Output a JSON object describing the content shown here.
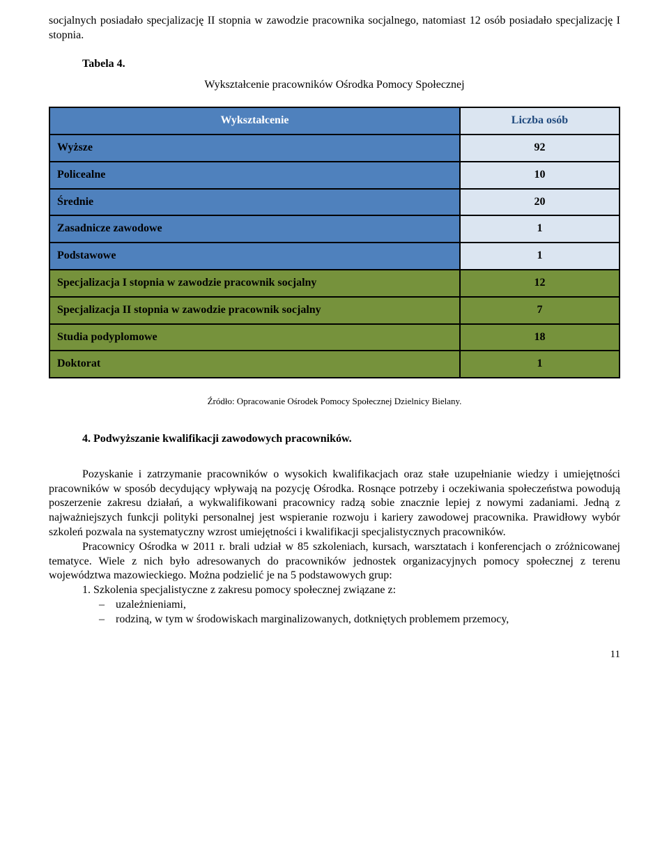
{
  "intro": "socjalnych posiadało specjalizację II stopnia w zawodzie pracownika socjalnego, natomiast 12 osób posiadało specjalizację I stopnia.",
  "tabela_label": "Tabela 4.",
  "table_title": "Wykształcenie pracowników Ośrodka Pomocy Społecznej",
  "table": {
    "header_left": "Wykształcenie",
    "header_right": "Liczba osób",
    "rows": [
      {
        "label": "Wyższe",
        "value": "92",
        "style": "blue"
      },
      {
        "label": "Policealne",
        "value": "10",
        "style": "blue"
      },
      {
        "label": "Średnie",
        "value": "20",
        "style": "blue"
      },
      {
        "label": "Zasadnicze zawodowe",
        "value": "1",
        "style": "blue"
      },
      {
        "label": "Podstawowe",
        "value": "1",
        "style": "blue"
      },
      {
        "label": "Specjalizacja I stopnia w zawodzie pracownik socjalny",
        "value": "12",
        "style": "green"
      },
      {
        "label": "Specjalizacja II stopnia w zawodzie pracownik socjalny",
        "value": "7",
        "style": "green"
      },
      {
        "label": "Studia podyplomowe",
        "value": "18",
        "style": "green"
      },
      {
        "label": "Doktorat",
        "value": "1",
        "style": "green"
      }
    ]
  },
  "source": "Źródło: Opracowanie Ośrodek Pomocy Społecznej Dzielnicy Bielany.",
  "section_heading": "4. Podwyższanie kwalifikacji zawodowych pracowników.",
  "para1": "Pozyskanie i zatrzymanie pracowników o wysokich kwalifikacjach oraz stałe uzupełnianie wiedzy i umiejętności pracowników w sposób decydujący wpływają na pozycję Ośrodka. Rosnące potrzeby i oczekiwania społeczeństwa powodują poszerzenie zakresu działań, a wykwalifikowani pracownicy radzą sobie znacznie lepiej z nowymi zadaniami. Jedną z najważniejszych funkcji polityki personalnej jest wspieranie rozwoju i kariery zawodowej pracownika. Prawidłowy wybór szkoleń pozwala na systematyczny wzrost umiejętności i kwalifikacji specjalistycznych pracowników.",
  "para2": "Pracownicy Ośrodka w 2011 r. brali udział w 85 szkoleniach, kursach, warsztatach i konferencjach o zróżnicowanej tematyce. Wiele z nich było adresowanych do pracowników jednostek organizacyjnych pomocy społecznej z terenu województwa mazowieckiego. Można podzielić je na 5 podstawowych grup:",
  "list_num_1": "1. Szkolenia specjalistyczne z zakresu pomocy społecznej związane z:",
  "bullet1": "uzależnieniami,",
  "bullet2": "rodziną, w tym w środowiskach marginalizowanych, dotkniętych problemem przemocy,",
  "dash": "–",
  "page_number": "11"
}
